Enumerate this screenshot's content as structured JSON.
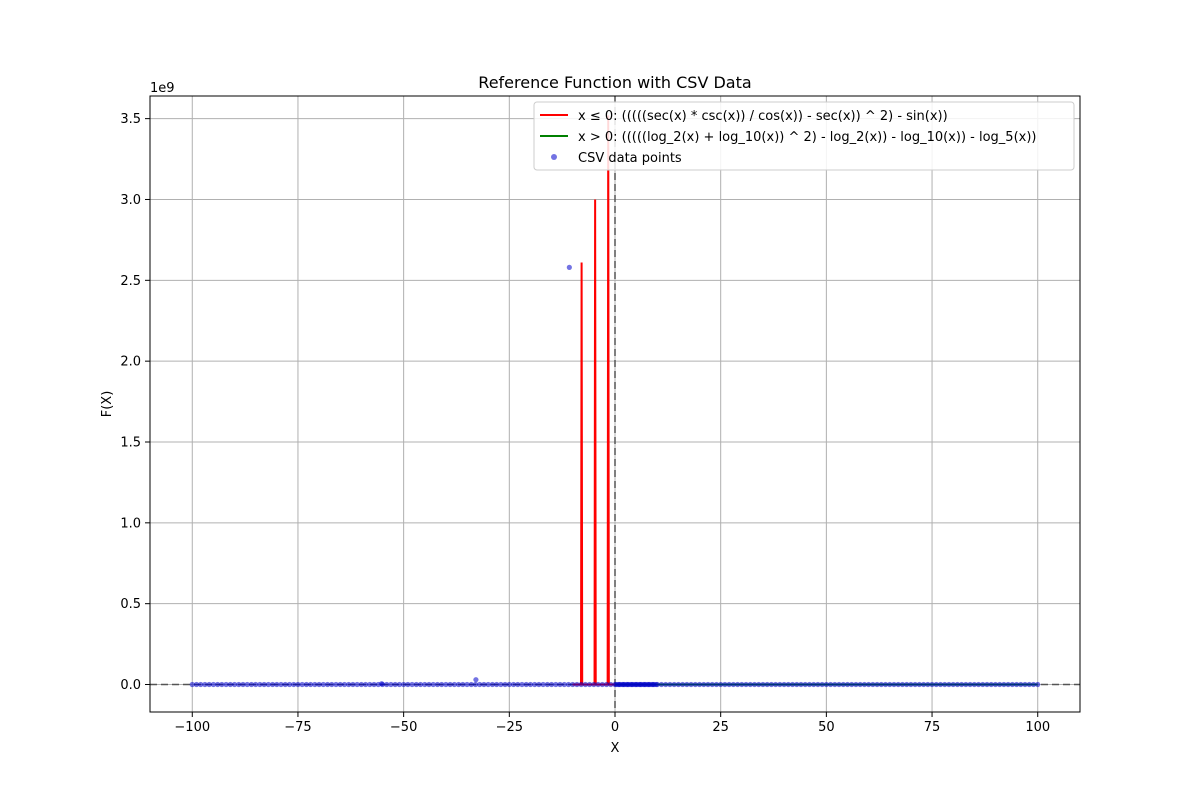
{
  "chart_data": {
    "type": "line",
    "title": "Reference Function with CSV Data",
    "xlabel": "X",
    "ylabel": "F(X)",
    "y_multiplier": "1e9",
    "xlim": [
      -110,
      110
    ],
    "ylim": [
      -0.17,
      3.64
    ],
    "x_ticks": [
      -100,
      -75,
      -50,
      -25,
      0,
      25,
      50,
      75,
      100
    ],
    "x_tick_labels": [
      "−100",
      "−75",
      "−50",
      "−25",
      "0",
      "25",
      "50",
      "75",
      "100"
    ],
    "y_ticks": [
      0.0,
      0.5,
      1.0,
      1.5,
      2.0,
      2.5,
      3.0,
      3.5
    ],
    "y_tick_labels": [
      "0.0",
      "0.5",
      "1.0",
      "1.5",
      "2.0",
      "2.5",
      "3.0",
      "3.5"
    ],
    "grid": true,
    "legend_position": "top-right",
    "colors": {
      "neg_line": "#ff0000",
      "pos_line": "#008000",
      "points": "#0000cc",
      "ref_lines": "#555555",
      "grid": "#b0b0b0"
    },
    "series": [
      {
        "name": "x ≤ 0: (((((sec(x) * csc(x)) / cos(x)) - sec(x)) ^ 2) - sin(x))",
        "kind": "line",
        "spikes": [
          {
            "x": -7.9,
            "y": 2.61
          },
          {
            "x": -4.7,
            "y": 3.0
          },
          {
            "x": -1.6,
            "y": 3.52
          }
        ]
      },
      {
        "name": "x > 0: (((((log_2(x) + log_10(x)) ^ 2) - log_2(x)) - log_10(x)) - log_5(x))",
        "kind": "line",
        "x_range": [
          0.01,
          100
        ]
      },
      {
        "name": "CSV data points",
        "kind": "scatter",
        "points": [
          {
            "x": -10.8,
            "y": 2.58
          },
          {
            "x": -32.9,
            "y": 0.03
          },
          {
            "x": -55.2,
            "y": 0.005
          }
        ],
        "baseline_range": [
          -100,
          100
        ],
        "baseline_step": 1
      }
    ]
  }
}
